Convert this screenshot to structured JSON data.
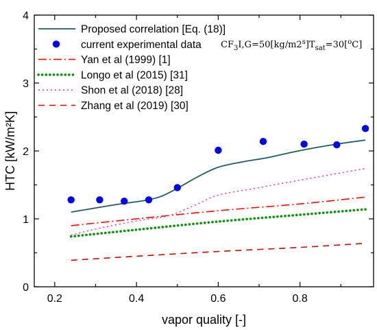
{
  "chart_data": {
    "type": "line",
    "xlabel": "vapor quality [-]",
    "ylabel": "HTC [kW/m²K]",
    "xlim": [
      0.15,
      0.98
    ],
    "ylim": [
      0,
      4
    ],
    "xticks": [
      0.2,
      0.4,
      0.6,
      0.8
    ],
    "xtick_labels": [
      "0.2",
      "0.4",
      "0.6",
      "0.8"
    ],
    "yticks": [
      0,
      1,
      2,
      3,
      4
    ],
    "ytick_labels": [
      "0",
      "1",
      "2",
      "3",
      "4"
    ],
    "grid": false,
    "legend_position": "top-left",
    "condition_text": "CF3I,G=50[kg/m2s]Tsat=30[oC]",
    "series": [
      {
        "name": "Proposed correlation [Eq. (18)]",
        "style": "solid",
        "color": "#1f5b5b",
        "x": [
          0.24,
          0.3,
          0.36,
          0.42,
          0.46,
          0.5,
          0.55,
          0.6,
          0.66,
          0.72,
          0.78,
          0.84,
          0.9,
          0.96
        ],
        "y": [
          1.1,
          1.16,
          1.22,
          1.27,
          1.33,
          1.45,
          1.62,
          1.76,
          1.84,
          1.9,
          1.98,
          2.05,
          2.11,
          2.16
        ]
      },
      {
        "name": "current experimental data",
        "style": "markers",
        "color": "#0000ff",
        "x": [
          0.24,
          0.31,
          0.37,
          0.43,
          0.5,
          0.6,
          0.71,
          0.81,
          0.89,
          0.96
        ],
        "y": [
          1.28,
          1.28,
          1.26,
          1.28,
          1.46,
          2.01,
          2.14,
          2.1,
          2.09,
          2.33
        ]
      },
      {
        "name": "Yan et al (1999) [1]",
        "style": "dashdot",
        "color": "#ff0000",
        "x": [
          0.24,
          0.4,
          0.6,
          0.8,
          0.96
        ],
        "y": [
          0.9,
          1.0,
          1.12,
          1.22,
          1.32
        ]
      },
      {
        "name": "Longo et al (2015) [31]",
        "style": "dotted-thick",
        "color": "#009900",
        "x": [
          0.24,
          0.4,
          0.6,
          0.8,
          0.96
        ],
        "y": [
          0.74,
          0.84,
          0.96,
          1.06,
          1.14
        ]
      },
      {
        "name": "Shon et al (2018) [28]",
        "style": "dotted",
        "color": "#ff3399",
        "x": [
          0.24,
          0.3,
          0.4,
          0.48,
          0.55,
          0.6,
          0.7,
          0.8,
          0.96
        ],
        "y": [
          0.76,
          0.85,
          0.97,
          1.05,
          1.22,
          1.35,
          1.46,
          1.57,
          1.74
        ]
      },
      {
        "name": "Zhang et al (2019) [30]",
        "style": "dashed",
        "color": "#cc0000",
        "x": [
          0.24,
          0.4,
          0.6,
          0.8,
          0.96
        ],
        "y": [
          0.39,
          0.45,
          0.52,
          0.58,
          0.64
        ]
      }
    ]
  }
}
